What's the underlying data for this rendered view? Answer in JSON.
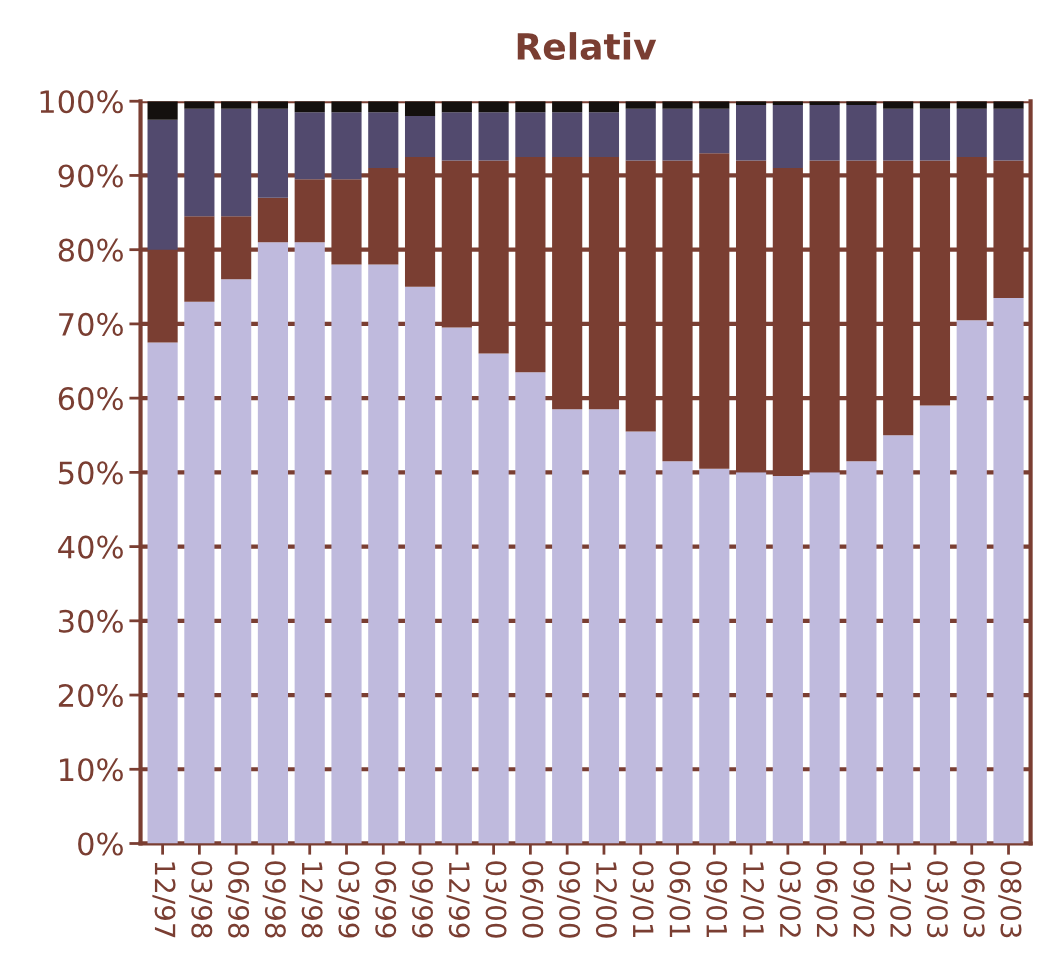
{
  "chart_data": {
    "type": "bar",
    "title": "Relativ",
    "stacked": true,
    "categories": [
      "12/97",
      "03/98",
      "06/98",
      "09/98",
      "12/98",
      "03/99",
      "06/99",
      "09/99",
      "12/99",
      "03/00",
      "06/00",
      "09/00",
      "12/00",
      "03/01",
      "06/01",
      "09/01",
      "12/01",
      "03/02",
      "06/02",
      "09/02",
      "12/02",
      "03/03",
      "06/03",
      "08/03"
    ],
    "series": [
      {
        "color": "#bfbadd",
        "values": [
          67.5,
          73,
          76,
          81,
          81,
          78,
          78,
          75,
          69.5,
          66,
          63.5,
          58.5,
          58.5,
          55.5,
          51.5,
          50.5,
          50,
          49.5,
          50,
          51.5,
          55,
          59,
          70.5,
          73.5
        ]
      },
      {
        "color": "#7a3e32",
        "values": [
          12.5,
          11.5,
          8.5,
          6,
          8.5,
          11.5,
          13,
          17.5,
          22.5,
          26,
          29,
          34,
          34,
          36.5,
          40.5,
          42.5,
          42,
          41.5,
          42,
          40.5,
          37,
          33,
          22,
          18.5
        ]
      },
      {
        "color": "#524a6e",
        "values": [
          17.5,
          14.5,
          14.5,
          12,
          9,
          9,
          7.5,
          5.5,
          6.5,
          6.5,
          6,
          6,
          6,
          7,
          7,
          6,
          7.5,
          8.5,
          7.5,
          7.5,
          7,
          7,
          6.5,
          7
        ]
      },
      {
        "color": "#14100e",
        "values": [
          2.5,
          1,
          1,
          1,
          1.5,
          1.5,
          1.5,
          2,
          1.5,
          1.5,
          1.5,
          1.5,
          1.5,
          1,
          1,
          1,
          0.5,
          0.5,
          0.5,
          0.5,
          1,
          1,
          1,
          1
        ]
      }
    ],
    "ylim": [
      0,
      100
    ],
    "yticks": [
      {
        "value": 0,
        "label": "0%"
      },
      {
        "value": 10,
        "label": "10%"
      },
      {
        "value": 20,
        "label": "20%"
      },
      {
        "value": 30,
        "label": "30%"
      },
      {
        "value": 40,
        "label": "40%"
      },
      {
        "value": 50,
        "label": "50%"
      },
      {
        "value": 60,
        "label": "60%"
      },
      {
        "value": 70,
        "label": "70%"
      },
      {
        "value": 80,
        "label": "80%"
      },
      {
        "value": 90,
        "label": "90%"
      },
      {
        "value": 100,
        "label": "100%"
      }
    ],
    "grid": "y"
  }
}
